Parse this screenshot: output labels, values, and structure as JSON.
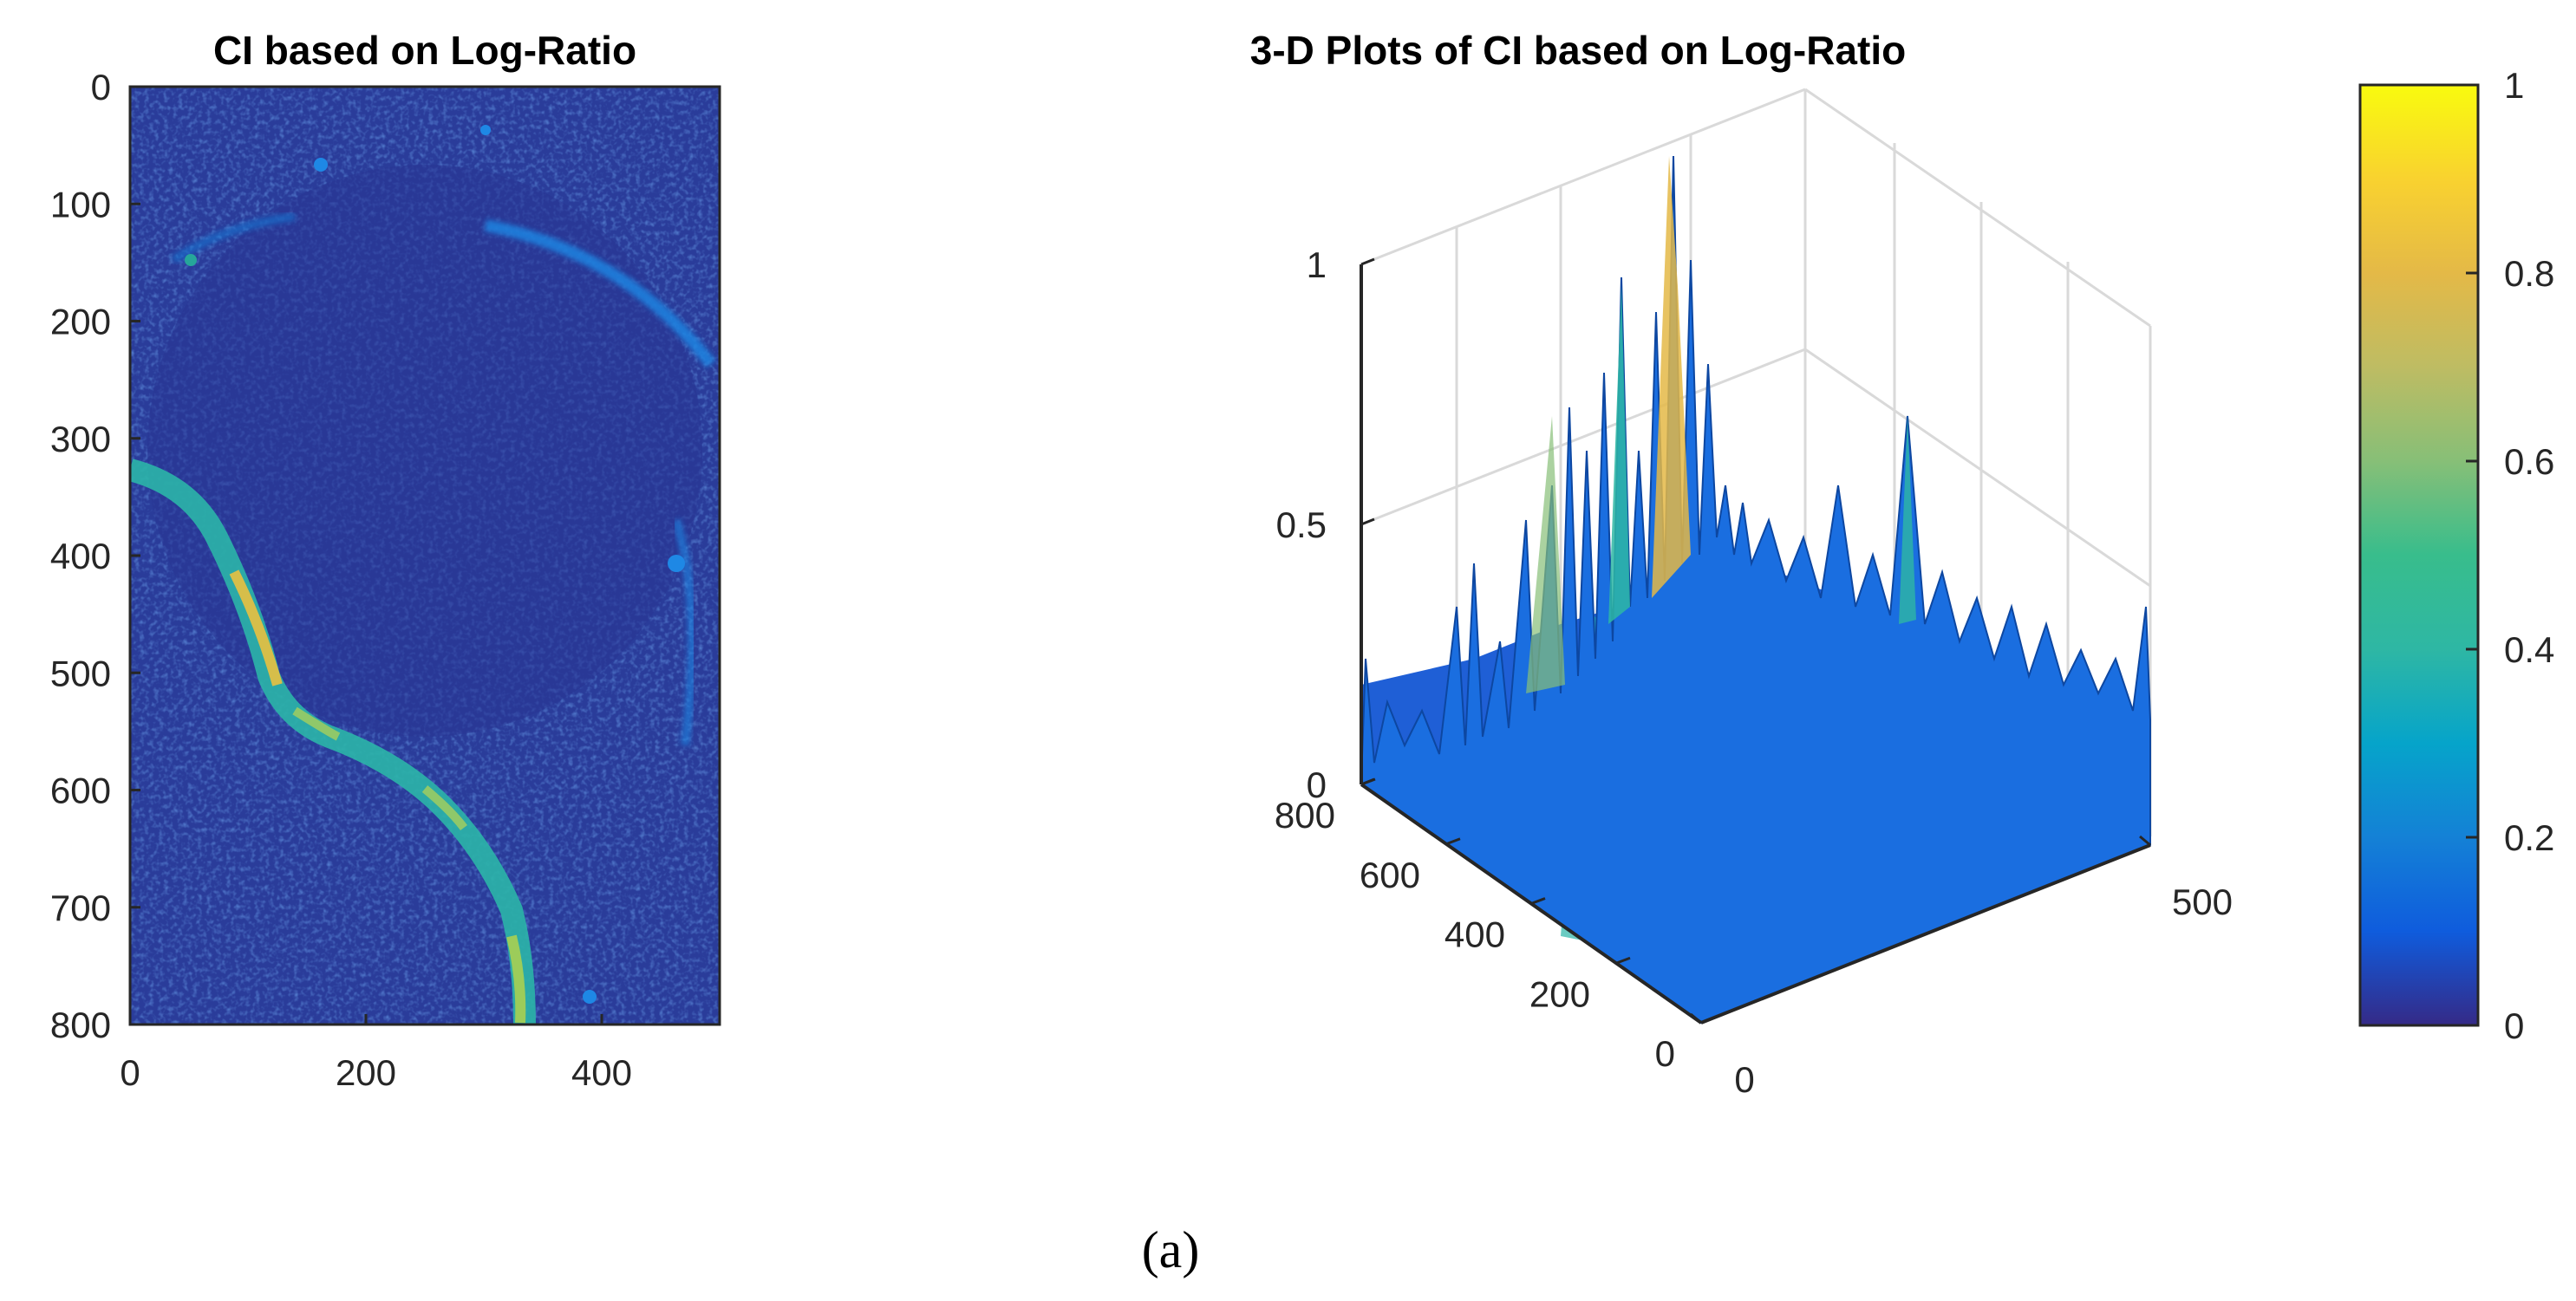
{
  "chart_data": [
    {
      "type": "heatmap",
      "title": "CI based on Log-Ratio",
      "xlabel": "",
      "ylabel": "",
      "xlim": [
        0,
        500
      ],
      "ylim": [
        800,
        0
      ],
      "xticks": [
        0,
        200,
        400
      ],
      "yticks": [
        0,
        100,
        200,
        300,
        400,
        500,
        600,
        700,
        800
      ],
      "grid": false,
      "description_values": "change index map (0-1), low background ~0.05-0.15, river channel ~0.5-0.8"
    },
    {
      "type": "surface",
      "title": "3-D Plots of CI based on Log-Ratio",
      "xlim": [
        0,
        500
      ],
      "ylim": [
        0,
        800
      ],
      "zlim": [
        0,
        1
      ],
      "xticks": [
        0,
        500
      ],
      "yticks": [
        0,
        200,
        400,
        600,
        800
      ],
      "zticks": [
        0,
        0.5,
        1
      ],
      "peak_value": 0.95,
      "grid": true
    },
    {
      "type": "colorbar",
      "colormap": "parula",
      "range": [
        0,
        1
      ],
      "ticks": [
        0,
        0.2,
        0.4,
        0.6,
        0.8,
        1
      ],
      "tick_labels": [
        "0",
        "0.2",
        "0.4",
        "0.6",
        "0.8",
        "1"
      ]
    }
  ],
  "caption": "(a)",
  "colors": {
    "parula_low": "#352a87",
    "parula_mid": "#0fb0c6",
    "parula_high": "#f9fb0e"
  }
}
